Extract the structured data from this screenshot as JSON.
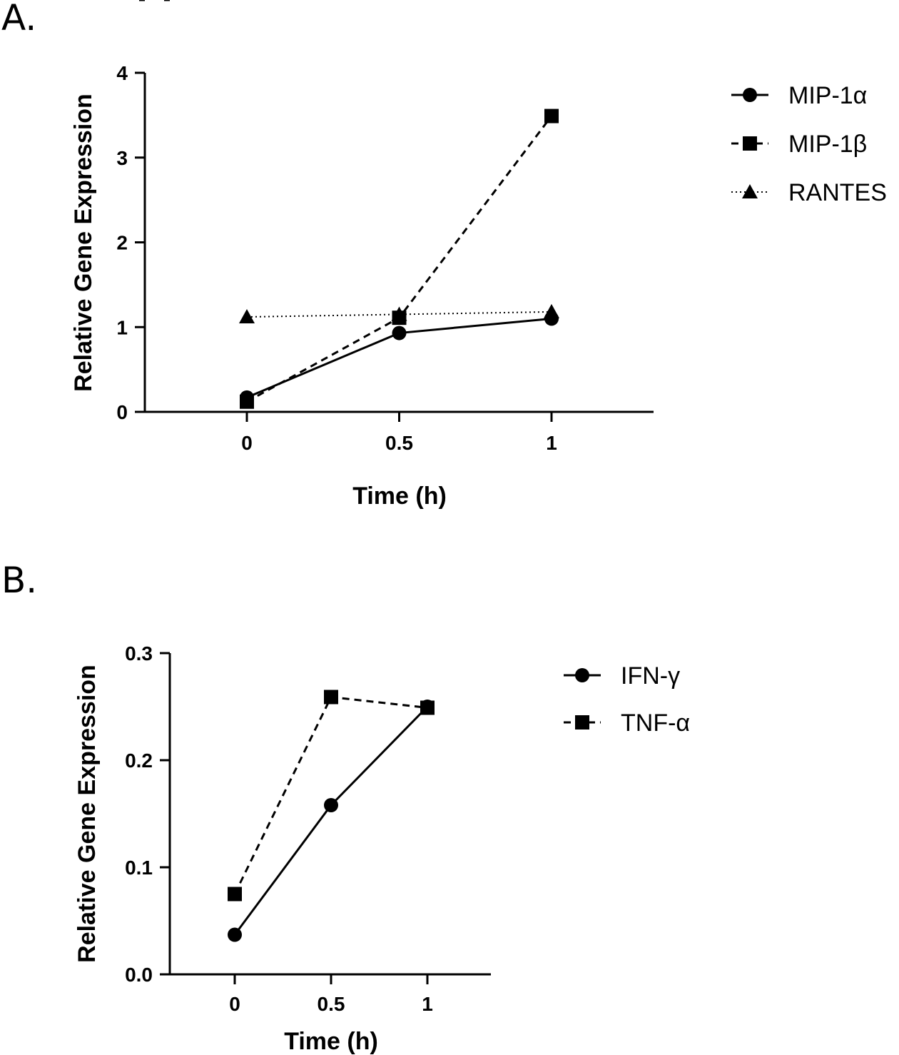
{
  "chart_data": [
    {
      "panel": "A.",
      "type": "line",
      "xlabel": "Time (h)",
      "ylabel": "Relative Gene Expression",
      "x": [
        0,
        0.5,
        1
      ],
      "x_ticks": [
        "0",
        "0.5",
        "1"
      ],
      "xlim": [
        -0.33,
        1.33
      ],
      "ylim": [
        0,
        4
      ],
      "y_ticks": [
        "0",
        "1",
        "2",
        "3",
        "4"
      ],
      "legend_position": "right",
      "grid": false,
      "series": [
        {
          "name": "MIP-1α",
          "marker": "circle",
          "line": "solid",
          "values": [
            0.17,
            0.93,
            1.1
          ]
        },
        {
          "name": "MIP-1β",
          "marker": "square",
          "line": "dashed",
          "values": [
            0.12,
            1.11,
            3.49
          ]
        },
        {
          "name": "RANTES",
          "marker": "triangle",
          "line": "dotted",
          "values": [
            1.12,
            1.15,
            1.18
          ]
        }
      ]
    },
    {
      "panel": "B.",
      "type": "line",
      "xlabel": "Time (h)",
      "ylabel": "Relative Gene Expression",
      "x": [
        0,
        0.5,
        1
      ],
      "x_ticks": [
        "0",
        "0.5",
        "1"
      ],
      "xlim": [
        -0.33,
        1.33
      ],
      "ylim": [
        0,
        0.3
      ],
      "y_ticks": [
        "0.0",
        "0.1",
        "0.2",
        "0.3"
      ],
      "legend_position": "right",
      "grid": false,
      "series": [
        {
          "name": "IFN-γ",
          "marker": "circle",
          "line": "solid",
          "values": [
            0.037,
            0.158,
            0.25
          ]
        },
        {
          "name": "TNF-α",
          "marker": "square",
          "line": "dashed",
          "values": [
            0.075,
            0.259,
            0.249
          ]
        }
      ]
    }
  ]
}
